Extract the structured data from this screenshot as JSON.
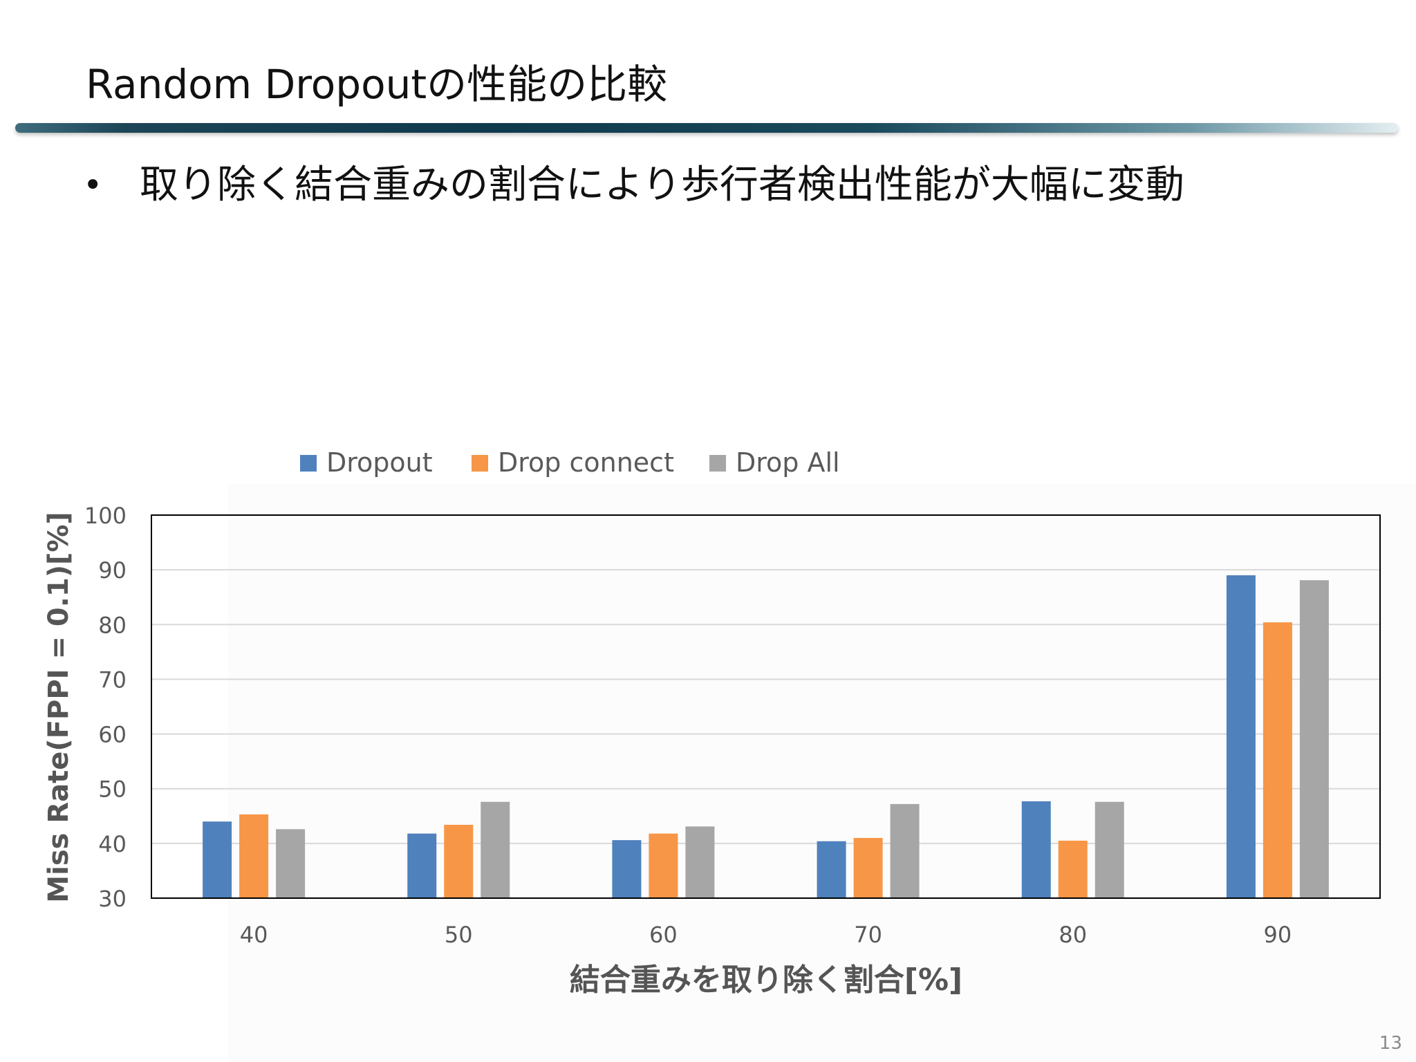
{
  "slide": {
    "title": "Random Dropoutの性能の比較",
    "bullet": "取り除く結合重みの割合により歩行者検出性能が大幅に変動",
    "page_number": "13"
  },
  "chart_data": {
    "type": "bar",
    "categories": [
      "40",
      "50",
      "60",
      "70",
      "80",
      "90"
    ],
    "series": [
      {
        "name": "Dropout",
        "color": "#4f81bd",
        "values": [
          44,
          41.8,
          40.6,
          40.4,
          47.7,
          89
        ]
      },
      {
        "name": "Drop connect",
        "color": "#f79646",
        "values": [
          45.3,
          43.4,
          41.8,
          41,
          40.5,
          80.4
        ]
      },
      {
        "name": "Drop All",
        "color": "#a6a6a6",
        "values": [
          42.6,
          47.6,
          43.1,
          47.2,
          47.6,
          88.1
        ]
      }
    ],
    "title": "",
    "xlabel": "結合重みを取り除く割合[%]",
    "ylabel": "Miss Rate(FPPI = 0.1)[%]",
    "ylim": [
      30,
      100
    ],
    "yticks": [
      "30",
      "40",
      "50",
      "60",
      "70",
      "80",
      "90",
      "100"
    ],
    "grid": true,
    "legend_position": "top"
  }
}
